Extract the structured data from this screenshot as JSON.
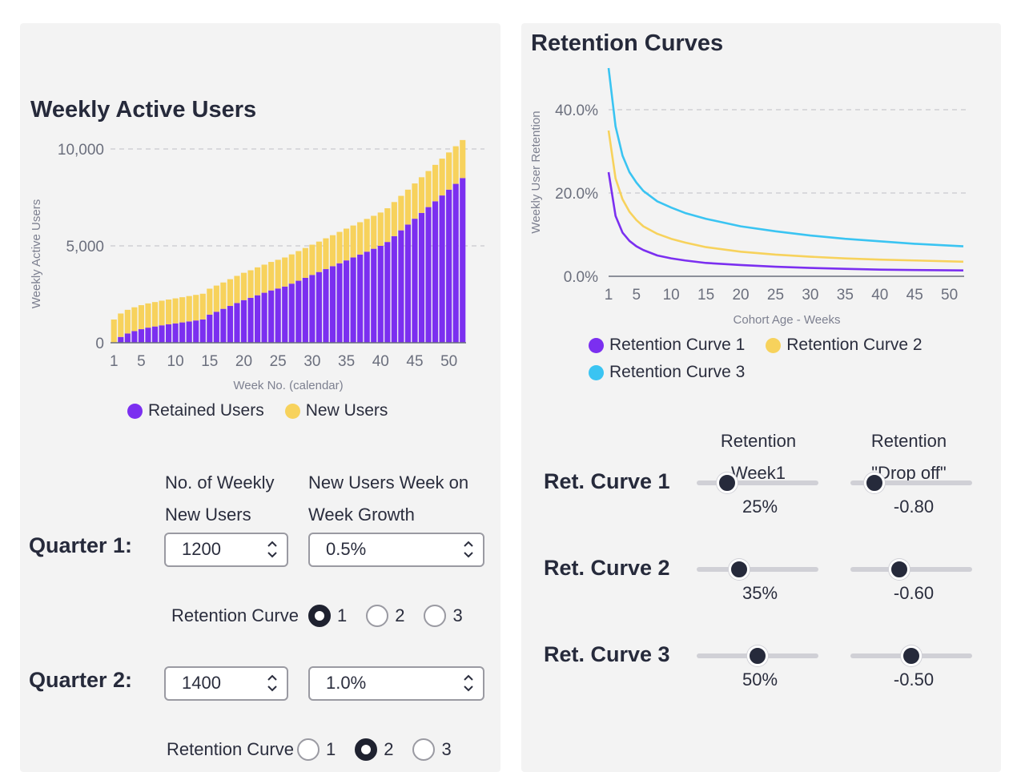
{
  "colors": {
    "purple": "#7b2ff0",
    "yellow": "#f7d25c",
    "cyan": "#3ac4f2",
    "dark": "#262a3b"
  },
  "left": {
    "title": "Weekly Active Users",
    "chart_data": {
      "type": "bar",
      "title": "Weekly Active Users",
      "xlabel": "Week No. (calendar)",
      "ylabel": "Weekly Active Users",
      "ylim": [
        0,
        10000
      ],
      "ytick_labels": [
        "0",
        "5,000",
        "10,000"
      ],
      "xtick_labels": [
        "1",
        "5",
        "10",
        "15",
        "20",
        "25",
        "30",
        "35",
        "40",
        "45",
        "50"
      ],
      "stacked": true,
      "series": [
        {
          "name": "Retained Users",
          "color": "#7b2ff0",
          "values": [
            0,
            300,
            480,
            600,
            700,
            780,
            840,
            900,
            950,
            1000,
            1050,
            1100,
            1150,
            1200,
            1450,
            1600,
            1750,
            1900,
            2050,
            2200,
            2320,
            2450,
            2580,
            2700,
            2800,
            2900,
            3050,
            3200,
            3350,
            3500,
            3650,
            3800,
            3950,
            4100,
            4250,
            4400,
            4550,
            4700,
            4850,
            5000,
            5200,
            5500,
            5800,
            6100,
            6400,
            6700,
            7000,
            7300,
            7600,
            7900,
            8200,
            8500
          ]
        },
        {
          "name": "New Users",
          "color": "#f7d25c",
          "values": [
            1200,
            1210,
            1220,
            1230,
            1240,
            1250,
            1260,
            1270,
            1280,
            1290,
            1300,
            1310,
            1320,
            1330,
            1340,
            1350,
            1360,
            1380,
            1400,
            1410,
            1420,
            1440,
            1450,
            1470,
            1480,
            1500,
            1510,
            1530,
            1540,
            1560,
            1570,
            1590,
            1600,
            1620,
            1640,
            1650,
            1670,
            1690,
            1700,
            1720,
            1740,
            1760,
            1780,
            1800,
            1820,
            1840,
            1860,
            1880,
            1900,
            1920,
            1940,
            1960
          ]
        }
      ]
    },
    "legend": [
      "Retained Users",
      "New Users"
    ],
    "col1_head": [
      "No. of Weekly",
      "New Users"
    ],
    "col2_head": [
      "New Users Week on",
      "Week Growth"
    ],
    "q1": {
      "label": "Quarter 1:",
      "new_users": "1200",
      "growth": "0.5%",
      "ret_label": "Retention Curve",
      "options": [
        "1",
        "2",
        "3"
      ],
      "selected": 1
    },
    "q2": {
      "label": "Quarter 2:",
      "new_users": "1400",
      "growth": "1.0%",
      "ret_label": "Retention Curve",
      "options": [
        "1",
        "2",
        "3"
      ],
      "selected": 2
    }
  },
  "right": {
    "title": "Retention Curves",
    "chart_data": {
      "type": "line",
      "title": "Retention Curves",
      "xlabel": "Cohort Age - Weeks",
      "ylabel": "Weekly User Retention",
      "ylim": [
        0,
        50
      ],
      "xlim": [
        1,
        52
      ],
      "ytick_labels": [
        "0.0%",
        "20.0%",
        "40.0%"
      ],
      "xtick_labels": [
        "1",
        "5",
        "10",
        "15",
        "20",
        "25",
        "30",
        "35",
        "40",
        "45",
        "50"
      ],
      "series": [
        {
          "name": "Retention Curve 1",
          "color": "#7b2ff0",
          "x": [
            1,
            2,
            3,
            4,
            5,
            6,
            8,
            10,
            12,
            15,
            20,
            25,
            30,
            35,
            40,
            45,
            52
          ],
          "values": [
            25,
            14.5,
            10.5,
            8.5,
            7.2,
            6.3,
            5,
            4.3,
            3.8,
            3.2,
            2.7,
            2.3,
            2,
            1.8,
            1.6,
            1.5,
            1.4
          ]
        },
        {
          "name": "Retention Curve 2",
          "color": "#f7d25c",
          "x": [
            1,
            2,
            3,
            4,
            5,
            6,
            8,
            10,
            12,
            15,
            20,
            25,
            30,
            35,
            40,
            45,
            52
          ],
          "values": [
            35,
            23.5,
            18.5,
            15.5,
            13.5,
            12,
            10.2,
            9,
            8.1,
            7,
            5.9,
            5.2,
            4.7,
            4.3,
            4,
            3.8,
            3.5
          ]
        },
        {
          "name": "Retention Curve 3",
          "color": "#3ac4f2",
          "x": [
            1,
            2,
            3,
            4,
            5,
            6,
            8,
            10,
            12,
            15,
            20,
            25,
            30,
            35,
            40,
            45,
            52
          ],
          "values": [
            50,
            36,
            29,
            25,
            22.5,
            20.5,
            18,
            16.5,
            15.2,
            13.8,
            12,
            10.8,
            9.8,
            9,
            8.4,
            7.8,
            7.2
          ]
        }
      ]
    },
    "legend": [
      "Retention Curve 1",
      "Retention Curve 2",
      "Retention Curve 3"
    ],
    "col1_head": [
      "Retention",
      "Week1"
    ],
    "col2_head": [
      "Retention",
      "\"Drop off\""
    ],
    "curves": [
      {
        "label": "Ret. Curve 1",
        "week1": "25%",
        "dropoff": "-0.80",
        "week1_level": 0.25,
        "dropoff_level": 0.2
      },
      {
        "label": "Ret. Curve 2",
        "week1": "35%",
        "dropoff": "-0.60",
        "week1_level": 0.35,
        "dropoff_level": 0.4
      },
      {
        "label": "Ret. Curve 3",
        "week1": "50%",
        "dropoff": "-0.50",
        "week1_level": 0.5,
        "dropoff_level": 0.5
      }
    ]
  }
}
